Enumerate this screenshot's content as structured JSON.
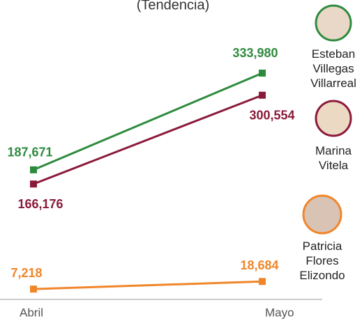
{
  "chart_data": {
    "type": "line",
    "subtitle": "(Tendencia)",
    "categories": [
      "Abril",
      "Mayo"
    ],
    "series": [
      {
        "name": "Esteban Villegas Villarreal",
        "color": "#2e8b3e",
        "values": [
          187671,
          333980
        ],
        "value_labels": [
          "187,671",
          "333,980"
        ]
      },
      {
        "name": "Marina Vitela",
        "color": "#8b1a3a",
        "values": [
          166176,
          300554
        ],
        "value_labels": [
          "166,176",
          "300,554"
        ]
      },
      {
        "name": "Patricia Flores Elizondo",
        "color": "#f0862a",
        "values": [
          7218,
          18684
        ],
        "value_labels": [
          "7,218",
          "18,684"
        ]
      }
    ]
  }
}
